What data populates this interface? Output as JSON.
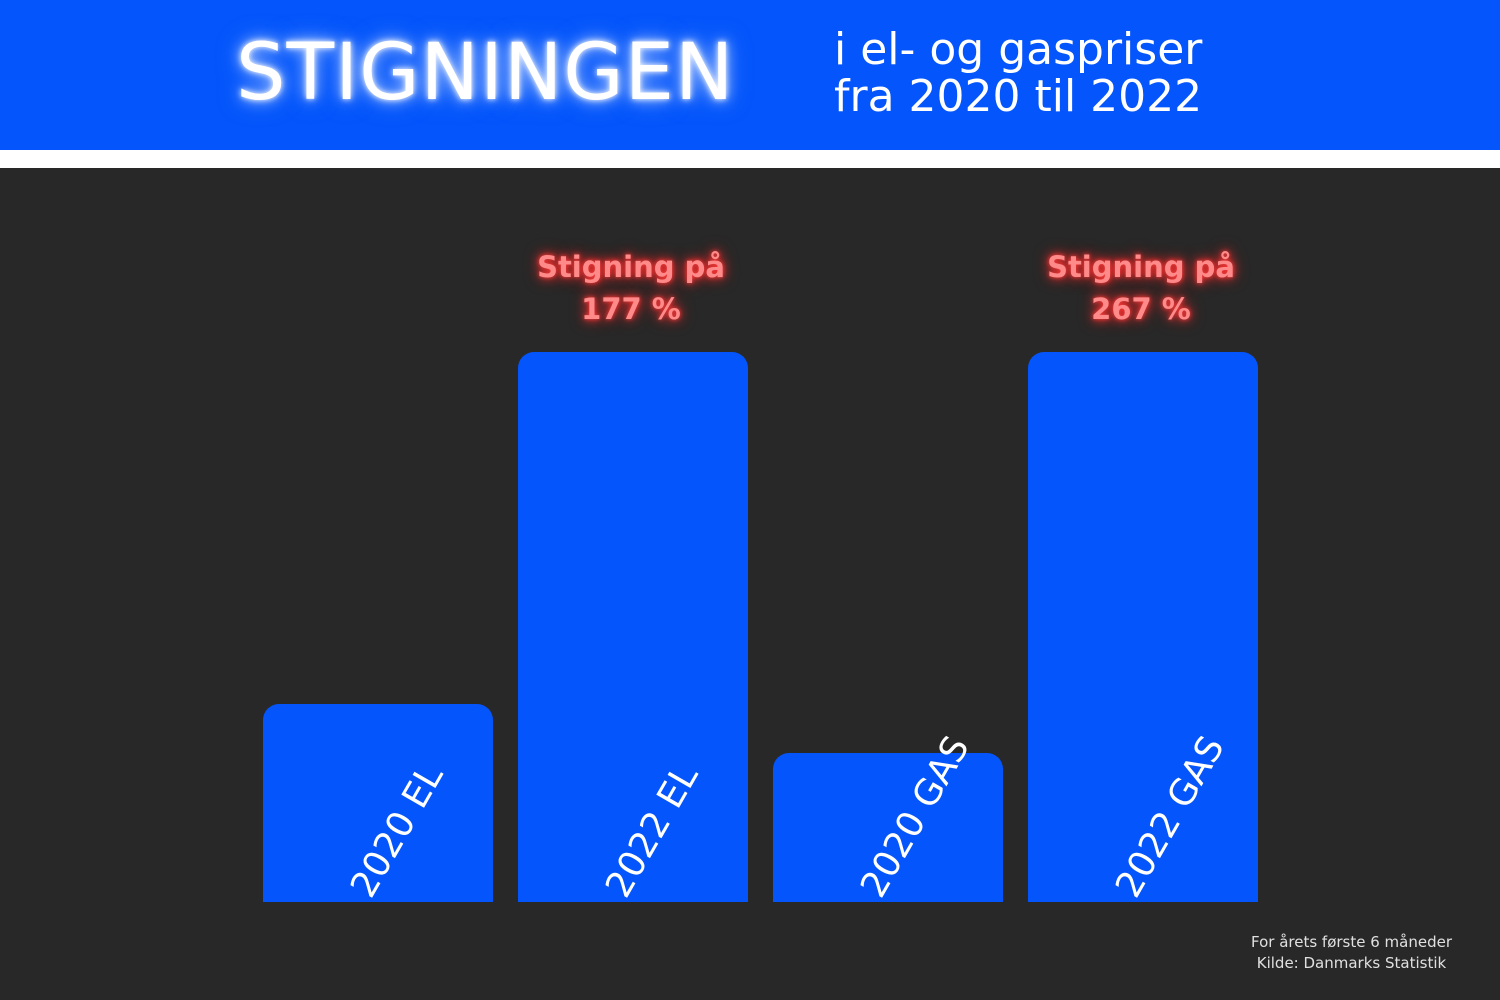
{
  "header": {
    "title": "STIGNINGEN",
    "subtitle_line1": "i el- og gaspriser",
    "subtitle_line2": "fra 2020 til 2022"
  },
  "colors": {
    "header_bg": "#0455fb",
    "bar": "#0455fb",
    "background": "#282828",
    "annotation": "#ff8a8a"
  },
  "chart_data": {
    "type": "bar",
    "title": "STIGNINGEN i el- og gaspriser fra 2020 til 2022",
    "categories": [
      "2020 EL",
      "2022 EL",
      "2020 GAS",
      "2022 GAS"
    ],
    "values": [
      36,
      100,
      27,
      100
    ],
    "annotations": [
      {
        "category": "2022 EL",
        "line1": "Stigning på",
        "line2": "177 %"
      },
      {
        "category": "2022 GAS",
        "line1": "Stigning på",
        "line2": "267 %"
      }
    ],
    "axes_visible": false,
    "grid": false
  },
  "footnote": {
    "line1": "For årets første 6 måneder",
    "line2": "Kilde: Danmarks Statistik"
  }
}
